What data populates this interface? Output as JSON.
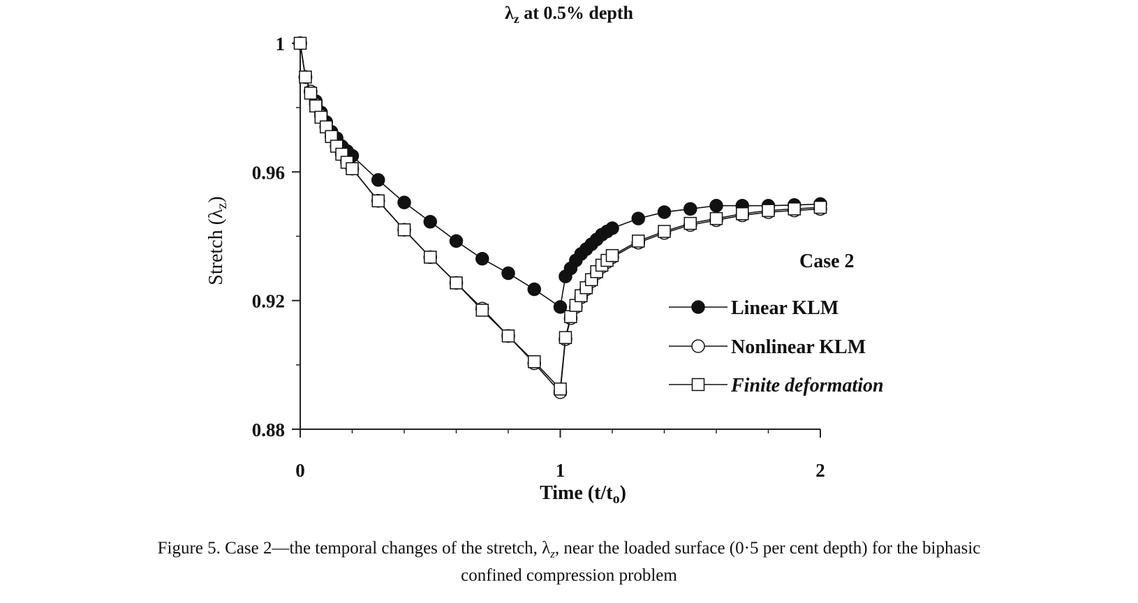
{
  "chart_data": {
    "type": "line",
    "title_parts": [
      "λ",
      "z",
      " at 0.5% depth"
    ],
    "xlabel_parts": [
      "Time (t/t",
      "o",
      ")"
    ],
    "ylabel_parts": [
      "Stretch (λ",
      "z",
      ")"
    ],
    "xlim": [
      0,
      2
    ],
    "ylim": [
      0.88,
      1.0
    ],
    "xticks": [
      0,
      1,
      2
    ],
    "yticks": [
      0.88,
      0.92,
      0.96,
      1
    ],
    "ytick_labels": [
      "0.88",
      "0.92",
      "0.96",
      "1"
    ],
    "xtick_labels": [
      "0",
      "1",
      "2"
    ],
    "grid": false,
    "legend_title": "Case 2",
    "legend_position": "right",
    "series": [
      {
        "name": "Linear KLM",
        "marker": "filled-circle",
        "x": [
          0,
          0.02,
          0.04,
          0.06,
          0.08,
          0.1,
          0.12,
          0.14,
          0.16,
          0.18,
          0.2,
          0.3,
          0.4,
          0.5,
          0.6,
          0.7,
          0.8,
          0.9,
          1.0,
          1.02,
          1.04,
          1.06,
          1.08,
          1.1,
          1.12,
          1.14,
          1.16,
          1.18,
          1.2,
          1.3,
          1.4,
          1.5,
          1.6,
          1.7,
          1.8,
          1.9,
          2.0
        ],
        "y": [
          1.0,
          0.9895,
          0.985,
          0.982,
          0.9785,
          0.9755,
          0.9725,
          0.9705,
          0.968,
          0.9665,
          0.965,
          0.9575,
          0.9505,
          0.9445,
          0.9385,
          0.933,
          0.9285,
          0.9235,
          0.918,
          0.9275,
          0.93,
          0.9325,
          0.9345,
          0.936,
          0.9375,
          0.939,
          0.9405,
          0.9415,
          0.9425,
          0.9455,
          0.9475,
          0.9485,
          0.9495,
          0.9495,
          0.9495,
          0.9497,
          0.95
        ]
      },
      {
        "name": "Nonlinear KLM",
        "marker": "open-circle",
        "x": [
          0,
          0.02,
          0.04,
          0.06,
          0.08,
          0.1,
          0.12,
          0.14,
          0.16,
          0.18,
          0.2,
          0.3,
          0.4,
          0.5,
          0.6,
          0.7,
          0.8,
          0.9,
          1.0,
          1.02,
          1.04,
          1.06,
          1.08,
          1.1,
          1.12,
          1.14,
          1.16,
          1.18,
          1.2,
          1.3,
          1.4,
          1.5,
          1.6,
          1.7,
          1.8,
          1.9,
          2.0
        ],
        "y": [
          1.0,
          0.9895,
          0.985,
          0.981,
          0.9775,
          0.974,
          0.971,
          0.968,
          0.9655,
          0.963,
          0.961,
          0.951,
          0.942,
          0.9335,
          0.9255,
          0.9175,
          0.909,
          0.9005,
          0.8915,
          0.908,
          0.9145,
          0.918,
          0.921,
          0.9235,
          0.926,
          0.9285,
          0.9305,
          0.932,
          0.9335,
          0.938,
          0.941,
          0.9435,
          0.945,
          0.9465,
          0.9475,
          0.948,
          0.9485
        ]
      },
      {
        "name": "Finite deformation",
        "marker": "open-square",
        "x": [
          0,
          0.02,
          0.04,
          0.06,
          0.08,
          0.1,
          0.12,
          0.14,
          0.16,
          0.18,
          0.2,
          0.3,
          0.4,
          0.5,
          0.6,
          0.7,
          0.8,
          0.9,
          1.0,
          1.02,
          1.04,
          1.06,
          1.08,
          1.1,
          1.12,
          1.14,
          1.16,
          1.18,
          1.2,
          1.3,
          1.4,
          1.5,
          1.6,
          1.7,
          1.8,
          1.9,
          2.0
        ],
        "y": [
          1.0,
          0.9895,
          0.9845,
          0.9805,
          0.977,
          0.974,
          0.971,
          0.968,
          0.9655,
          0.963,
          0.961,
          0.951,
          0.942,
          0.9335,
          0.9255,
          0.917,
          0.909,
          0.901,
          0.8925,
          0.9085,
          0.915,
          0.9185,
          0.9215,
          0.924,
          0.9265,
          0.929,
          0.931,
          0.9325,
          0.934,
          0.9385,
          0.9415,
          0.944,
          0.9455,
          0.947,
          0.948,
          0.9485,
          0.949
        ]
      }
    ]
  },
  "caption": {
    "line1": "Figure 5. Case 2—the temporal changes of the stretch, λ",
    "line1_sub": "z",
    "line1_rest": ", near the loaded surface (0·5 per cent depth) for the biphasic",
    "line2": "confined compression problem"
  }
}
